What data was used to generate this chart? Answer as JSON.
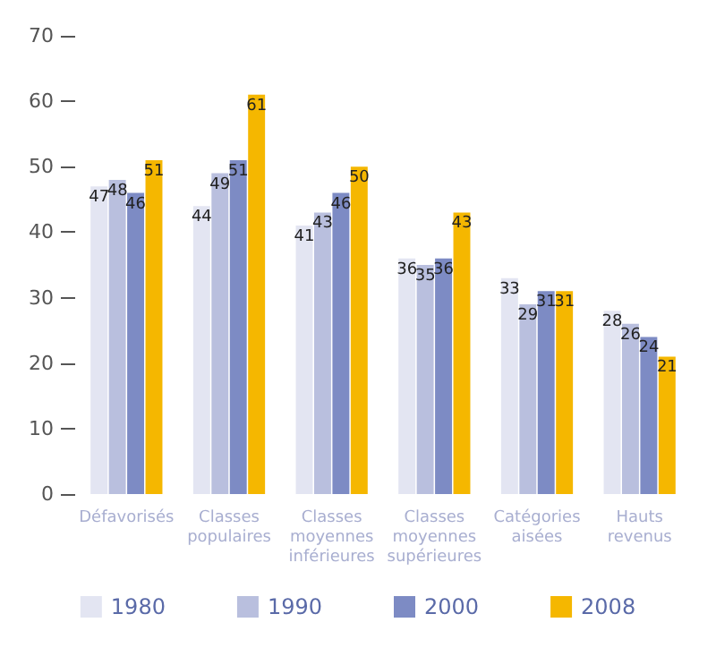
{
  "chart_data": {
    "type": "bar",
    "categories": [
      "Défavorisés",
      "Classes\npopulaires",
      "Classes\nmoyennes\ninférieures",
      "Classes\nmoyennes\nsupérieures",
      "Catégories\naisées",
      "Hauts\nrevenus"
    ],
    "series": [
      {
        "name": "1980",
        "color": "#e3e5f2",
        "values": [
          47,
          44,
          41,
          36,
          33,
          28
        ]
      },
      {
        "name": "1990",
        "color": "#b9bfde",
        "values": [
          48,
          49,
          43,
          35,
          29,
          26
        ]
      },
      {
        "name": "2000",
        "color": "#7d8bc4",
        "values": [
          46,
          51,
          46,
          36,
          31,
          24
        ]
      },
      {
        "name": "2008",
        "color": "#f5b700",
        "values": [
          51,
          61,
          50,
          43,
          31,
          21
        ]
      }
    ],
    "ylim": [
      0,
      70
    ],
    "yticks": [
      0,
      10,
      20,
      30,
      40,
      50,
      60,
      70
    ],
    "data_labels": true,
    "grid": false,
    "legend": "bottom"
  }
}
